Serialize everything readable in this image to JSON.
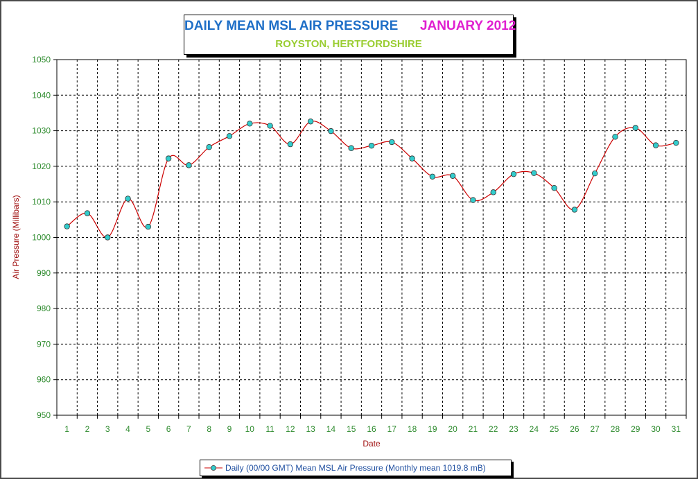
{
  "chart_data": {
    "type": "line",
    "title": "DAILY MEAN MSL AIR PRESSURE",
    "title_period": "JANUARY 2012",
    "subtitle": "ROYSTON, HERTFORDSHIRE",
    "xlabel": "Date",
    "ylabel": "Air Pressure (Millibars)",
    "ylim": [
      950,
      1050
    ],
    "yticks": [
      950,
      960,
      970,
      980,
      990,
      1000,
      1010,
      1020,
      1030,
      1040,
      1050
    ],
    "x": [
      1,
      2,
      3,
      4,
      5,
      6,
      7,
      8,
      9,
      10,
      11,
      12,
      13,
      14,
      15,
      16,
      17,
      18,
      19,
      20,
      21,
      22,
      23,
      24,
      25,
      26,
      27,
      28,
      29,
      30,
      31
    ],
    "grid": true,
    "legend_position": "bottom-center",
    "series": [
      {
        "name": "Daily (00/00 GMT) Mean MSL Air Pressure (Monthly mean 1019.8 mB)",
        "line_color": "#cc0000",
        "marker_color": "#33cccc",
        "values": [
          1003.1,
          1006.8,
          1000.0,
          1010.9,
          1003.0,
          1022.2,
          1020.3,
          1025.4,
          1028.5,
          1032.0,
          1031.4,
          1026.2,
          1032.6,
          1029.9,
          1025.1,
          1025.8,
          1026.8,
          1022.2,
          1017.1,
          1017.3,
          1010.5,
          1012.7,
          1017.8,
          1018.1,
          1013.9,
          1007.8,
          1018.0,
          1028.3,
          1030.8,
          1025.9,
          1026.6
        ]
      }
    ]
  },
  "colors": {
    "title_main": "#1f6fc7",
    "title_period": "#e020d0",
    "subtitle": "#9acd32",
    "axis_text": "#2e8b2e",
    "axis_label": "#a01010",
    "legend_text": "#1f4fa0"
  }
}
